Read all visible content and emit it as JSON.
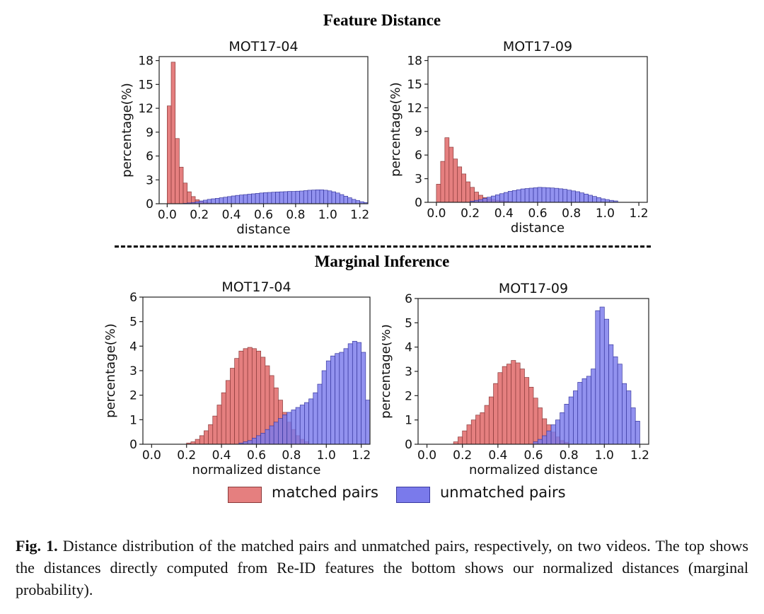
{
  "sections": {
    "top_title": "Feature Distance",
    "bottom_title": "Marginal Inference"
  },
  "legend": {
    "matched_label": "matched pairs",
    "unmatched_label": "unmatched pairs"
  },
  "colors": {
    "matched_fill": "#e57f7f",
    "matched_edge": "#8a3a3a",
    "unmatched_fill": "#7a7aeb",
    "unmatched_edge": "#3a3aa0"
  },
  "caption": {
    "prefix": "Fig. 1.",
    "text": "Distance distribution of the matched pairs and unmatched pairs, respectively, on two videos. The top shows the distances directly computed from Re-ID features the bottom shows our normalized distances (marginal probability)."
  },
  "chart_data": [
    {
      "type": "bar",
      "title": "MOT17-04",
      "xlabel": "distance",
      "ylabel": "percentage(%)",
      "xlim": [
        -0.05,
        1.25
      ],
      "ylim": [
        0,
        18.5
      ],
      "xticks": [
        0.0,
        0.2,
        0.4,
        0.6,
        0.8,
        1.0,
        1.2
      ],
      "xtick_labels": [
        "0.0",
        "0.2",
        "0.4",
        "0.6",
        "0.8",
        "1.0",
        "1.2"
      ],
      "yticks": [
        0,
        3,
        6,
        9,
        12,
        15,
        18
      ],
      "ytick_labels": [
        "0",
        "3",
        "6",
        "9",
        "12",
        "15",
        "18"
      ],
      "bin_width": 0.025,
      "series": [
        {
          "name": "matched pairs",
          "x_start": 0.0,
          "values": [
            12.3,
            17.8,
            8.2,
            4.6,
            2.6,
            1.5,
            0.9,
            0.5,
            0.3,
            0.2,
            0.1,
            0.05
          ]
        },
        {
          "name": "unmatched pairs",
          "x_start": 0.1,
          "values": [
            0.05,
            0.1,
            0.15,
            0.25,
            0.35,
            0.45,
            0.55,
            0.62,
            0.68,
            0.75,
            0.82,
            0.9,
            0.98,
            1.05,
            1.1,
            1.15,
            1.2,
            1.25,
            1.3,
            1.35,
            1.4,
            1.42,
            1.45,
            1.48,
            1.5,
            1.52,
            1.55,
            1.55,
            1.58,
            1.6,
            1.65,
            1.7,
            1.72,
            1.75,
            1.75,
            1.7,
            1.62,
            1.5,
            1.35,
            1.15,
            0.95,
            0.75,
            0.55,
            0.4,
            0.25,
            0.15
          ]
        }
      ]
    },
    {
      "type": "bar",
      "title": "MOT17-09",
      "xlabel": "distance",
      "ylabel": "percentage(%)",
      "xlim": [
        -0.05,
        1.25
      ],
      "ylim": [
        0,
        18.5
      ],
      "xticks": [
        0.0,
        0.2,
        0.4,
        0.6,
        0.8,
        1.0,
        1.2
      ],
      "xtick_labels": [
        "0.0",
        "0.2",
        "0.4",
        "0.6",
        "0.8",
        "1.0",
        "1.2"
      ],
      "yticks": [
        0,
        3,
        6,
        9,
        12,
        15,
        18
      ],
      "ytick_labels": [
        "0",
        "3",
        "6",
        "9",
        "12",
        "15",
        "18"
      ],
      "bin_width": 0.025,
      "series": [
        {
          "name": "matched pairs",
          "x_start": 0.0,
          "values": [
            2.3,
            5.2,
            8.2,
            7.0,
            5.5,
            4.5,
            3.6,
            2.6,
            1.9,
            1.3,
            0.9,
            0.6,
            0.45,
            0.35,
            0.25,
            0.2,
            0.15,
            0.1
          ]
        },
        {
          "name": "unmatched pairs",
          "x_start": 0.2,
          "values": [
            0.15,
            0.25,
            0.35,
            0.5,
            0.65,
            0.8,
            0.95,
            1.1,
            1.25,
            1.4,
            1.5,
            1.6,
            1.7,
            1.75,
            1.8,
            1.85,
            1.9,
            1.88,
            1.85,
            1.82,
            1.78,
            1.72,
            1.65,
            1.55,
            1.45,
            1.35,
            1.2,
            1.05,
            0.9,
            0.75,
            0.6,
            0.45,
            0.35,
            0.25,
            0.18
          ]
        }
      ]
    },
    {
      "type": "bar",
      "title": "MOT17-04",
      "xlabel": "normalized distance",
      "ylabel": "percentage(%)",
      "xlim": [
        -0.05,
        1.25
      ],
      "ylim": [
        0,
        6.0
      ],
      "xticks": [
        0.0,
        0.2,
        0.4,
        0.6,
        0.8,
        1.0,
        1.2
      ],
      "xtick_labels": [
        "0.0",
        "0.2",
        "0.4",
        "0.6",
        "0.8",
        "1.0",
        "1.2"
      ],
      "yticks": [
        0,
        1,
        2,
        3,
        4,
        5,
        6
      ],
      "ytick_labels": [
        "0",
        "1",
        "2",
        "3",
        "4",
        "5",
        "6"
      ],
      "bin_width": 0.025,
      "series": [
        {
          "name": "matched pairs",
          "x_start": 0.2,
          "values": [
            0.05,
            0.1,
            0.2,
            0.35,
            0.55,
            0.8,
            1.15,
            1.6,
            2.1,
            2.6,
            3.1,
            3.5,
            3.8,
            3.9,
            3.95,
            3.9,
            3.8,
            3.55,
            3.2,
            2.8,
            2.3,
            1.8,
            1.3,
            0.9,
            0.6,
            0.35,
            0.2,
            0.1
          ]
        },
        {
          "name": "unmatched pairs",
          "x_start": 0.5,
          "values": [
            0.05,
            0.1,
            0.15,
            0.25,
            0.35,
            0.45,
            0.6,
            0.75,
            0.9,
            1.05,
            1.2,
            1.3,
            1.4,
            1.5,
            1.6,
            1.7,
            1.85,
            2.1,
            2.45,
            3.0,
            3.4,
            3.6,
            3.7,
            3.75,
            3.9,
            4.1,
            4.2,
            4.15,
            3.75,
            1.8
          ]
        }
      ]
    },
    {
      "type": "bar",
      "title": "MOT17-09",
      "xlabel": "normalized distance",
      "ylabel": "percentage(%)",
      "xlim": [
        -0.05,
        1.25
      ],
      "ylim": [
        0,
        6.0
      ],
      "xticks": [
        0.0,
        0.2,
        0.4,
        0.6,
        0.8,
        1.0,
        1.2
      ],
      "xtick_labels": [
        "0.0",
        "0.2",
        "0.4",
        "0.6",
        "0.8",
        "1.0",
        "1.2"
      ],
      "yticks": [
        0,
        1,
        2,
        3,
        4,
        5,
        6
      ],
      "ytick_labels": [
        "0",
        "1",
        "2",
        "3",
        "4",
        "5",
        "6"
      ],
      "bin_width": 0.025,
      "series": [
        {
          "name": "matched pairs",
          "x_start": 0.15,
          "values": [
            0.1,
            0.3,
            0.55,
            0.8,
            1.0,
            1.2,
            1.3,
            1.6,
            1.95,
            2.5,
            2.95,
            3.2,
            3.3,
            3.45,
            3.35,
            3.1,
            2.75,
            2.35,
            1.9,
            1.5,
            1.05,
            0.8,
            0.5,
            0.3,
            0.15,
            0.08
          ]
        },
        {
          "name": "unmatched pairs",
          "x_start": 0.6,
          "values": [
            0.1,
            0.2,
            0.35,
            0.55,
            0.8,
            1.0,
            1.3,
            1.65,
            1.95,
            2.2,
            2.55,
            2.7,
            2.8,
            3.1,
            5.5,
            5.65,
            5.15,
            4.1,
            3.6,
            3.3,
            2.5,
            2.2,
            1.5,
            0.95
          ]
        }
      ]
    }
  ]
}
